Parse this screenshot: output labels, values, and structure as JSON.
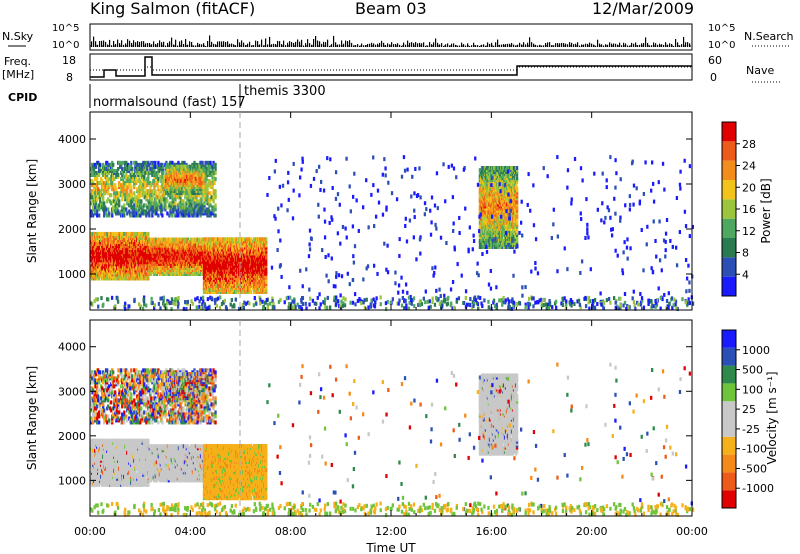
{
  "header": {
    "station": "King Salmon (fitACF)",
    "beam": "Beam 03",
    "date": "12/Mar/2009"
  },
  "strip_labels": {
    "nsky": "N.Sky",
    "nsearch": "N.Search",
    "freq_line1": "Freq.",
    "freq_line2": "[MHz]",
    "nave": "Nave",
    "cpid": "CPID",
    "nsky_ticks": [
      "10^5",
      "10^0"
    ],
    "nsearch_ticks": [
      "10^5",
      "10^0"
    ],
    "freq_ticks": [
      "18",
      "8"
    ],
    "nave_ticks": [
      "60",
      "0"
    ]
  },
  "cpid_segments": [
    {
      "label": "normalsound (fast) 157",
      "start_hour": 0.0,
      "end_hour": 6.0
    },
    {
      "label": "themis 3300",
      "start_hour": 6.0,
      "end_hour": 24.0
    }
  ],
  "colors": {
    "power": [
      "#1a1aff",
      "#2b4fb5",
      "#2a7a52",
      "#4fa860",
      "#9bc53d",
      "#f2c31a",
      "#f28c1a",
      "#ee5a1a",
      "#e00000"
    ],
    "velocity": [
      "#e00000",
      "#ee5a1a",
      "#f58a1a",
      "#f5b01a",
      "#c8c8c8",
      "#c8c8c8",
      "#6ec43a",
      "#2e8a4a",
      "#2a4fb5",
      "#1a1aff"
    ]
  },
  "chart_data": [
    {
      "type": "heatmap",
      "quantity": "power",
      "ylabel": "Slant Range [km]",
      "yticks": [
        "1000",
        "2000",
        "3000",
        "4000"
      ],
      "ylim": [
        200,
        4600
      ],
      "xlim": [
        0,
        24
      ],
      "colorbar_label": "Power [dB]",
      "colorbar_ticks": [
        "4",
        "8",
        "12",
        "16",
        "20",
        "24",
        "28"
      ],
      "colorbar_range": [
        0,
        32
      ],
      "regions": [
        {
          "t0": 0.0,
          "t1": 2.3,
          "r0": 900,
          "r1": 1900,
          "level": 0.6
        },
        {
          "t0": 2.3,
          "t1": 4.8,
          "r0": 1000,
          "r1": 1800,
          "level": 0.55
        },
        {
          "t0": 4.5,
          "t1": 7.0,
          "r0": 600,
          "r1": 1800,
          "level": 0.6
        },
        {
          "t0": 0.0,
          "t1": 5.0,
          "r0": 2300,
          "r1": 3500,
          "level": 0.15
        },
        {
          "t0": 3.0,
          "t1": 4.5,
          "r0": 2800,
          "r1": 3400,
          "level": 0.35
        },
        {
          "t0": 15.5,
          "t1": 17.0,
          "r0": 1600,
          "r1": 3400,
          "level": 0.3
        }
      ]
    },
    {
      "type": "heatmap",
      "quantity": "velocity",
      "ylabel": "Slant Range [km]",
      "yticks": [
        "1000",
        "2000",
        "3000",
        "4000"
      ],
      "ylim": [
        200,
        4600
      ],
      "xlim": [
        0,
        24
      ],
      "xticks": [
        "00:00",
        "04:00",
        "08:00",
        "12:00",
        "16:00",
        "20:00",
        "00:00"
      ],
      "xlabel": "Time UT",
      "colorbar_label": "Velocity [m s⁻¹]",
      "colorbar_ticks": [
        "-1000",
        "-500",
        "-100",
        "-25",
        "25",
        "100",
        "500",
        "1000"
      ],
      "colorbar_range": [
        -1200,
        1200
      ],
      "regions": [
        {
          "t0": 0.0,
          "t1": 4.0,
          "r0": 1100,
          "r1": 1900,
          "level": "gray"
        },
        {
          "t0": 4.7,
          "t1": 7.0,
          "r0": 600,
          "r1": 1800,
          "level": "orange"
        },
        {
          "t0": 0.0,
          "t1": 5.0,
          "r0": 2300,
          "r1": 3500,
          "level": "mixed"
        },
        {
          "t0": 15.5,
          "t1": 17.0,
          "r0": 1600,
          "r1": 3400,
          "level": "gray"
        }
      ]
    }
  ]
}
